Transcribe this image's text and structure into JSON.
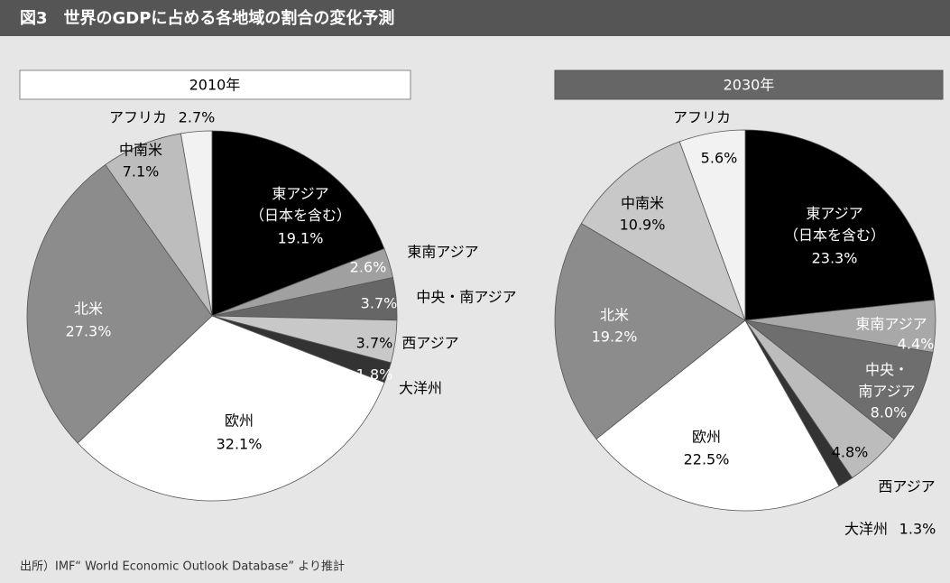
{
  "header": {
    "title": "図3　世界のGDPに占める各地域の割合の変化予測"
  },
  "source": "出所）IMF“ World Economic Outlook Database” より推計",
  "chart_data": [
    {
      "type": "pie",
      "title": "2010年",
      "categories": [
        "東アジア（日本を含む）",
        "東南アジア",
        "中央・南アジア",
        "西アジア",
        "大洋州",
        "欧州",
        "北米",
        "中南米",
        "アフリカ"
      ],
      "values": [
        19.1,
        2.6,
        3.7,
        3.7,
        1.8,
        32.1,
        27.3,
        7.1,
        2.7
      ],
      "value_labels": [
        "19.1%",
        "2.6%",
        "3.7%",
        "3.7%",
        "1.8%",
        "32.1%",
        "27.3%",
        "7.1%",
        "2.7%"
      ],
      "colors": [
        "#000000",
        "#a0a0a0",
        "#666666",
        "#c8c8c8",
        "#333333",
        "#ffffff",
        "#8c8c8c",
        "#bdbdbd",
        "#f2f2f2"
      ]
    },
    {
      "type": "pie",
      "title": "2030年",
      "categories": [
        "東アジア（日本を含む）",
        "東南アジア",
        "中央・南アジア",
        "西アジア",
        "大洋州",
        "欧州",
        "北米",
        "中南米",
        "アフリカ"
      ],
      "values": [
        23.3,
        4.4,
        8.0,
        4.8,
        1.3,
        22.5,
        19.2,
        10.9,
        5.6
      ],
      "value_labels": [
        "23.3%",
        "4.4%",
        "8.0%",
        "4.8%",
        "1.3%",
        "22.5%",
        "19.2%",
        "10.9%",
        "5.6%"
      ],
      "colors": [
        "#000000",
        "#a8a8a8",
        "#6e6e6e",
        "#bcbcbc",
        "#333333",
        "#ffffff",
        "#8c8c8c",
        "#c8c8c8",
        "#f2f2f2"
      ]
    }
  ]
}
